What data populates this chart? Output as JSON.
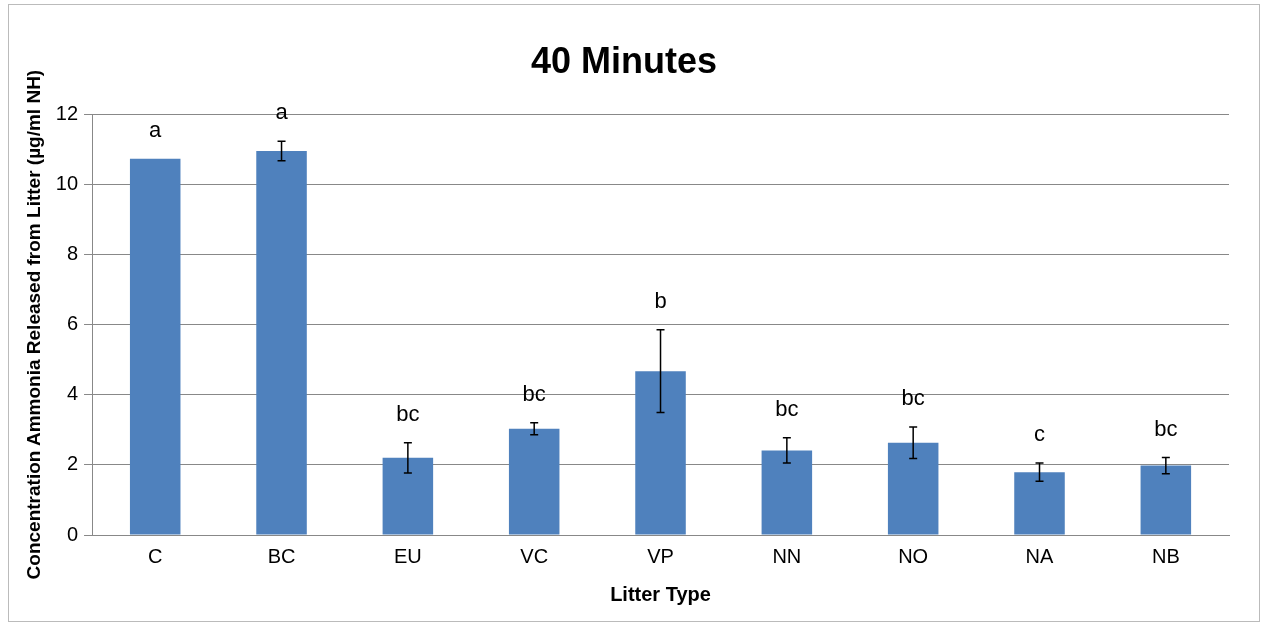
{
  "chart_data": {
    "type": "bar",
    "title": "40 Minutes",
    "xlabel": "Litter Type",
    "ylabel": "Concentration Ammonia Released from Litter (µg/ml NH)",
    "categories": [
      "C",
      "BC",
      "EU",
      "VC",
      "VP",
      "NN",
      "NO",
      "NA",
      "NB"
    ],
    "values": [
      10.73,
      10.95,
      2.2,
      3.03,
      4.67,
      2.41,
      2.63,
      1.79,
      1.98
    ],
    "errors": [
      null,
      0.28,
      0.43,
      0.17,
      1.18,
      0.36,
      0.45,
      0.26,
      0.23
    ],
    "color": "#4f81bd",
    "ylim": [
      0,
      12
    ],
    "yticks": [
      0,
      2,
      4,
      6,
      8,
      10,
      12
    ],
    "grid": "y",
    "annotations": [
      "a",
      "a",
      "bc",
      "bc",
      "b",
      "bc",
      "bc",
      "c",
      "bc"
    ]
  }
}
